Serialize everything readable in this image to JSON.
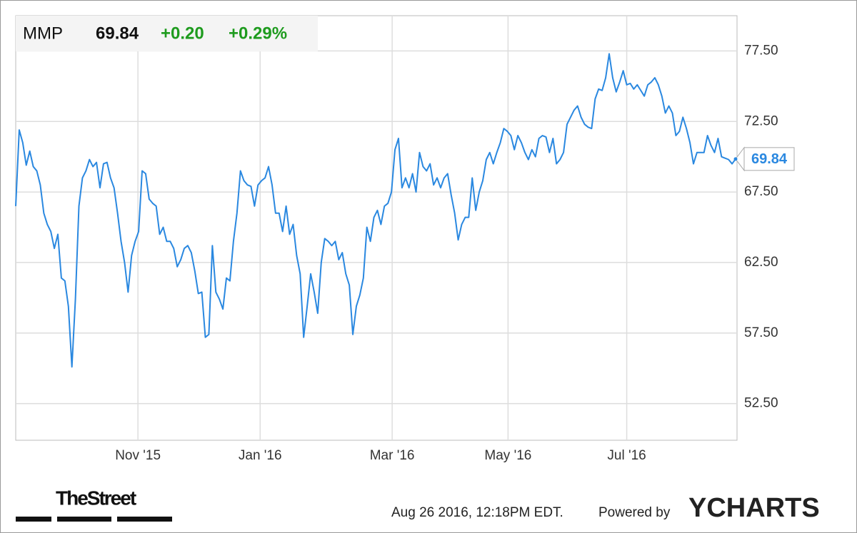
{
  "chart_data": {
    "type": "line",
    "header": {
      "change": "+0.20",
      "change_pct": "+0.29%"
    },
    "series": [
      {
        "name": "MMP",
        "color": "#2a88e0",
        "values": [
          66.5,
          71.9,
          71.0,
          69.4,
          70.4,
          69.3,
          69.0,
          68.0,
          66.0,
          65.2,
          64.7,
          63.5,
          64.5,
          61.4,
          61.2,
          59.4,
          55.1,
          59.9,
          66.5,
          68.5,
          69.0,
          69.8,
          69.3,
          69.6,
          67.8,
          69.5,
          69.6,
          68.5,
          67.8,
          66.0,
          64.0,
          62.5,
          60.4,
          63.0,
          64.0,
          64.7,
          69.0,
          68.8,
          67.0,
          66.7,
          66.5,
          64.5,
          65.0,
          64.0,
          64.0,
          63.5,
          62.2,
          62.7,
          63.5,
          63.7,
          63.2,
          61.9,
          60.3,
          60.4,
          57.2,
          57.4,
          63.7,
          60.4,
          59.9,
          59.2,
          61.4,
          61.2,
          64.0,
          66.0,
          69.0,
          68.3,
          68.0,
          67.9,
          66.5,
          68.0,
          68.3,
          68.5,
          69.3,
          68.0,
          66.0,
          66.0,
          64.7,
          66.5,
          64.5,
          65.2,
          63.0,
          61.7,
          57.2,
          59.4,
          61.7,
          60.4,
          58.9,
          62.5,
          64.2,
          64.0,
          63.7,
          64.0,
          62.7,
          63.2,
          61.7,
          60.9,
          57.4,
          59.4,
          60.2,
          61.4,
          65.0,
          64.0,
          65.7,
          66.2,
          65.2,
          66.5,
          66.7,
          67.5,
          70.5,
          71.3,
          67.8,
          68.5,
          67.8,
          68.8,
          67.5,
          70.3,
          69.3,
          69.0,
          69.5,
          68.0,
          68.5,
          67.8,
          68.5,
          68.8,
          67.3,
          66.0,
          64.1,
          65.2,
          65.7,
          65.7,
          68.5,
          66.2,
          67.5,
          68.3,
          69.8,
          70.3,
          69.5,
          70.3,
          71.0,
          72.0,
          71.8,
          71.5,
          70.5,
          71.5,
          71.0,
          70.3,
          69.8,
          70.5,
          70.0,
          71.3,
          71.5,
          71.4,
          70.3,
          71.3,
          69.5,
          69.8,
          70.3,
          72.3,
          72.8,
          73.3,
          73.6,
          72.8,
          72.3,
          72.1,
          72.0,
          74.1,
          74.8,
          74.7,
          75.6,
          77.3,
          75.6,
          74.6,
          75.3,
          76.1,
          75.1,
          75.2,
          74.8,
          75.1,
          74.7,
          74.3,
          75.1,
          75.3,
          75.6,
          75.1,
          74.3,
          73.1,
          73.6,
          73.1,
          71.5,
          71.8,
          72.8,
          72.0,
          71.0,
          69.5,
          70.3,
          70.3,
          70.3,
          71.5,
          70.8,
          70.3,
          71.3,
          70.0,
          69.9,
          69.8,
          69.5,
          69.84
        ]
      }
    ],
    "xlim": [
      0,
      205
    ],
    "xticks": [
      {
        "value": 34.8,
        "label": "Nov '15"
      },
      {
        "value": 69.6,
        "label": "Jan '16"
      },
      {
        "value": 107.2,
        "label": "Mar '16"
      },
      {
        "value": 140.2,
        "label": "May '16"
      },
      {
        "value": 174,
        "label": "Jul '16"
      }
    ],
    "ylim": [
      49.9,
      80.0
    ],
    "yticks": [
      {
        "value": 52.5,
        "label": "52.50"
      },
      {
        "value": 57.5,
        "label": "57.50"
      },
      {
        "value": 62.5,
        "label": "62.50"
      },
      {
        "value": 67.5,
        "label": "67.50"
      },
      {
        "value": 72.5,
        "label": "72.50"
      },
      {
        "value": 77.5,
        "label": "77.50"
      }
    ],
    "grid": true,
    "footer": {
      "timestamp": "Aug 26 2016, 12:18PM EDT.",
      "powered_by": "Powered by",
      "brand": "YCHARTS",
      "partner": "TheStreet"
    }
  }
}
